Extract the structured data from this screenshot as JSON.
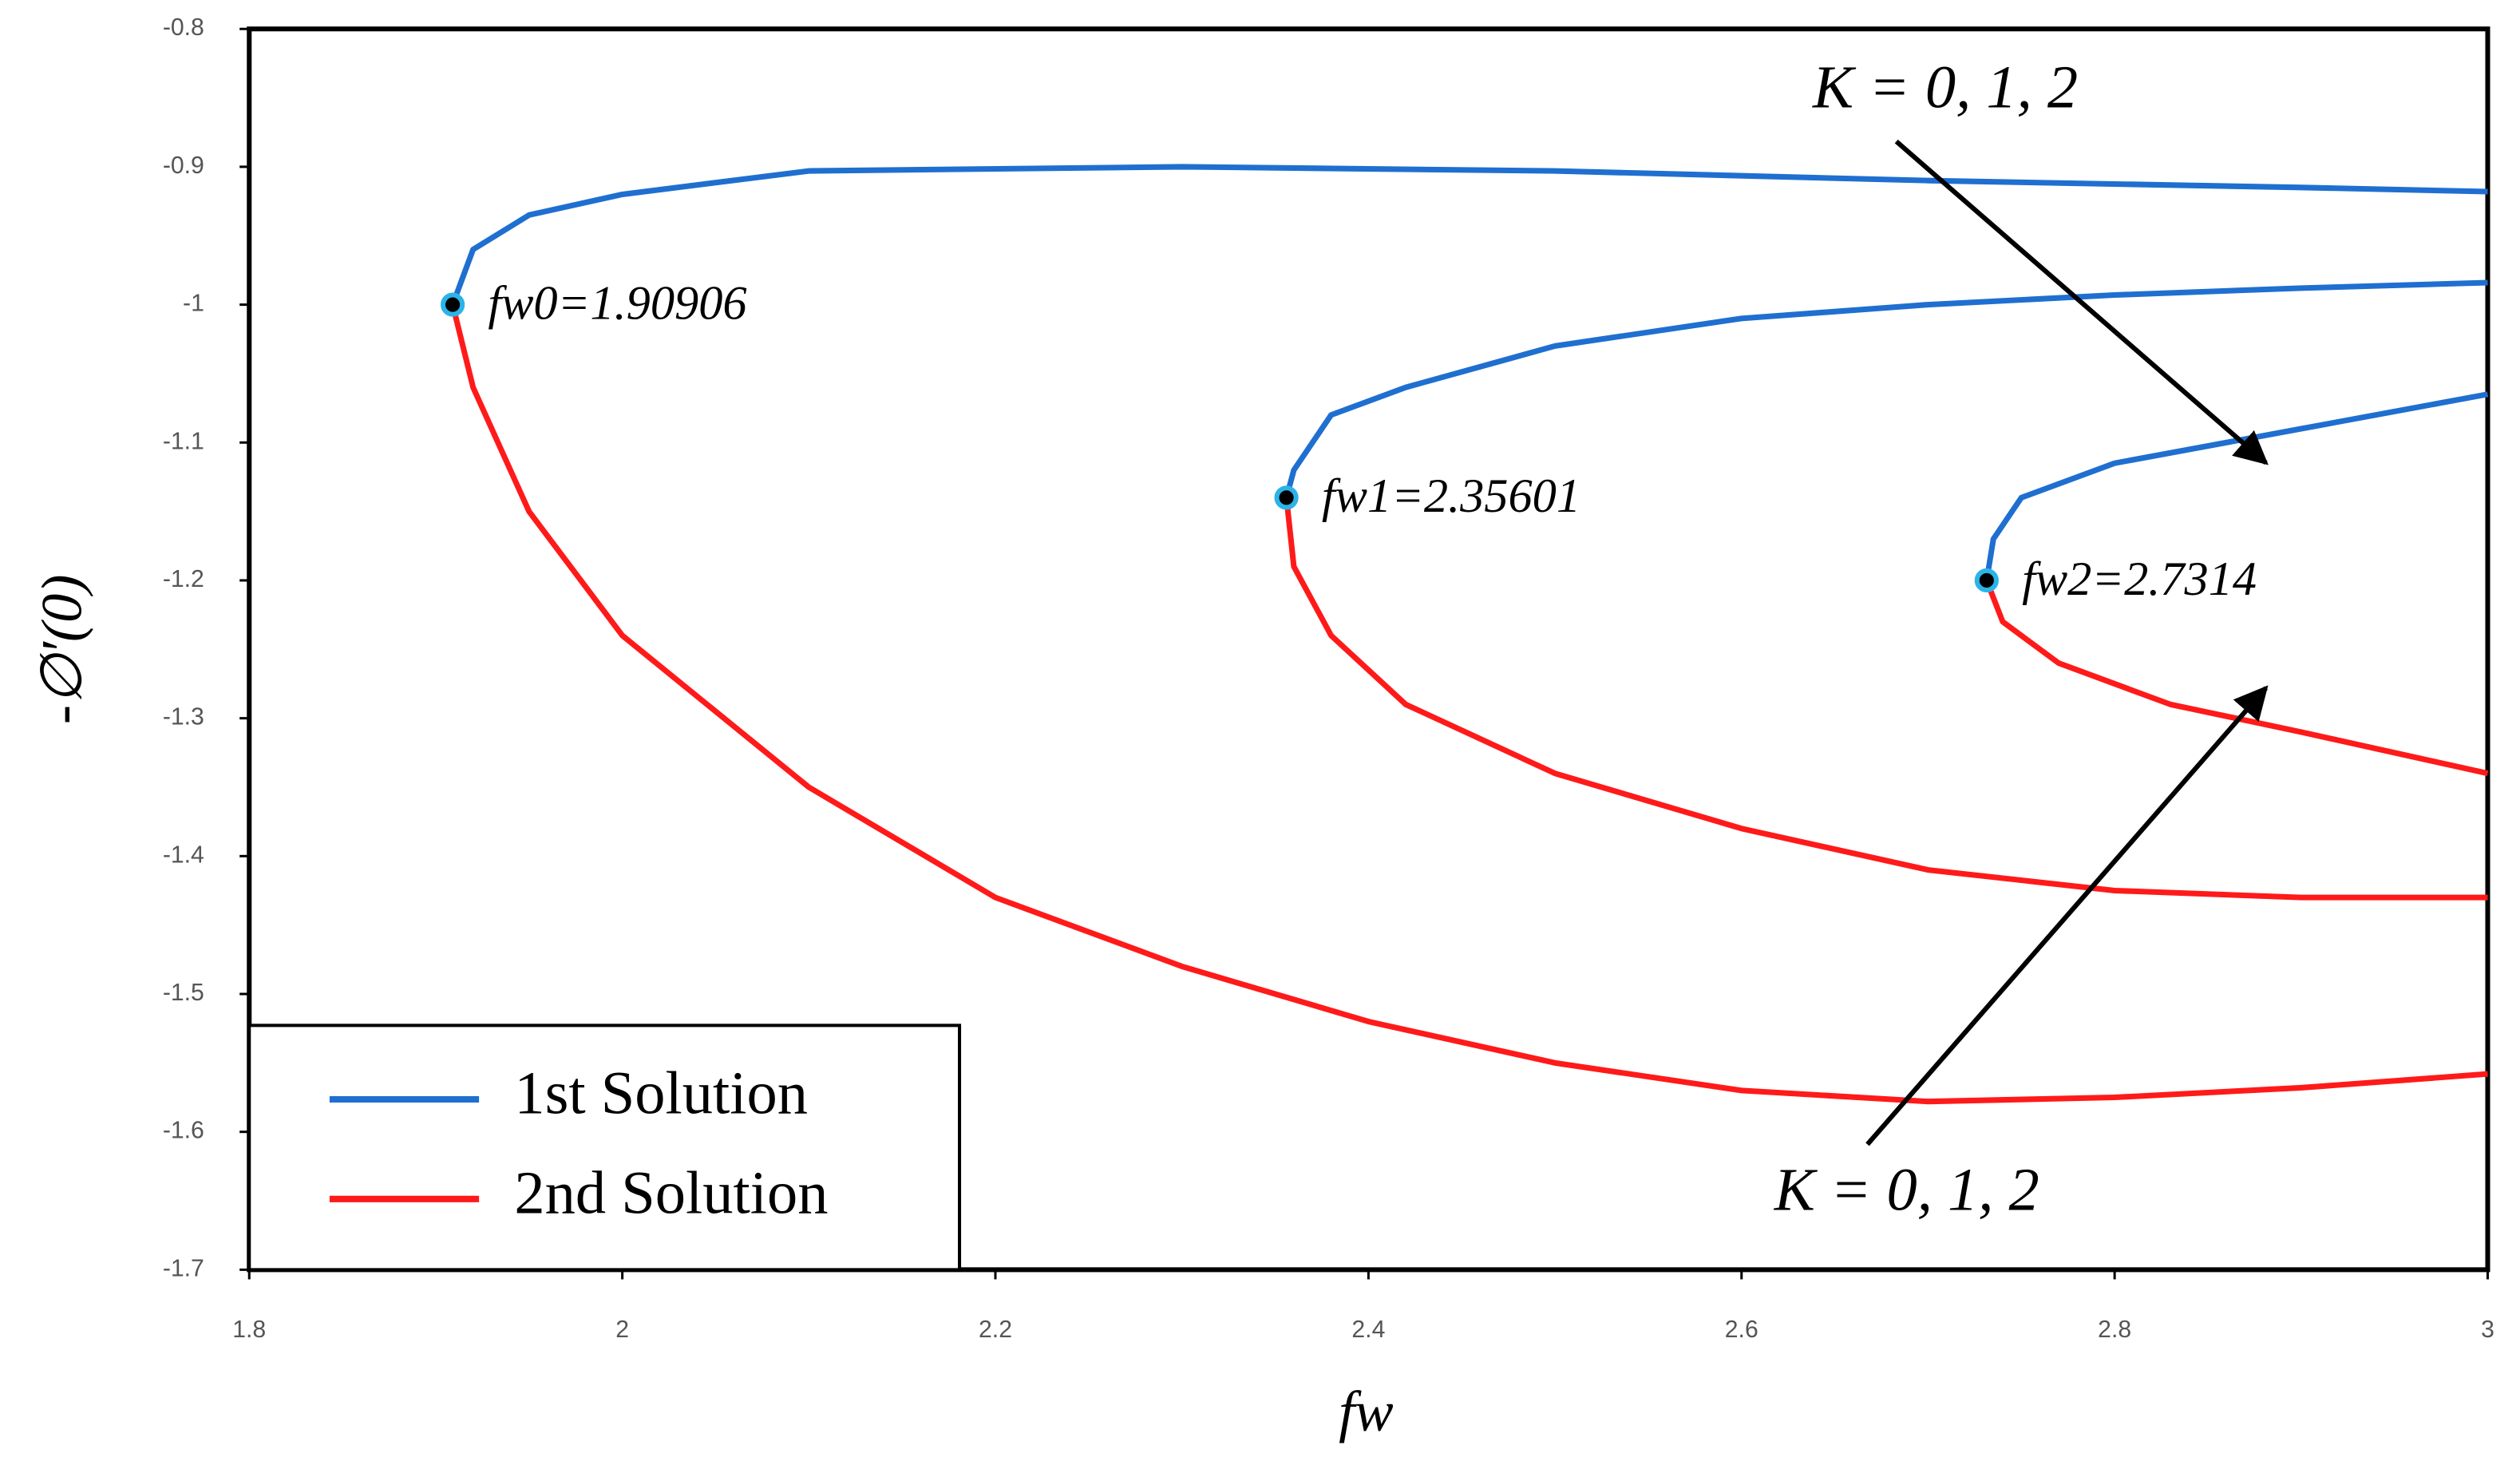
{
  "chart_data": {
    "type": "line",
    "x_label": "fw",
    "y_label": "-∅′(0)",
    "xlim": [
      1.8,
      3
    ],
    "xticks": [
      1.8,
      2,
      2.2,
      2.4,
      2.6,
      2.8,
      3
    ],
    "ylim": [
      -1.7,
      -0.8
    ],
    "yticks": [
      -0.8,
      -0.9,
      -1,
      -1.1,
      -1.2,
      -1.3,
      -1.4,
      -1.5,
      -1.6,
      -1.7
    ],
    "legend": "lower left",
    "series": [
      {
        "name": "1st Solution",
        "color": "#1f6fd0",
        "x": [
          1.90906,
          1.92,
          1.95,
          2.0,
          2.1,
          2.3,
          2.5,
          2.7,
          2.9,
          3.0,
          null,
          2.35601,
          2.36,
          2.38,
          2.42,
          2.5,
          2.6,
          2.7,
          2.8,
          2.9,
          3.0,
          null,
          2.7314,
          2.735,
          2.75,
          2.8,
          2.9,
          3.0
        ],
        "values": [
          -1.0,
          -0.96,
          -0.935,
          -0.92,
          -0.903,
          -0.9,
          -0.903,
          -0.91,
          -0.915,
          -0.918,
          null,
          -1.14,
          -1.12,
          -1.08,
          -1.06,
          -1.03,
          -1.01,
          -1.0,
          -0.993,
          -0.988,
          -0.984,
          null,
          -1.2,
          -1.17,
          -1.14,
          -1.115,
          -1.09,
          -1.065
        ]
      },
      {
        "name": "2nd Solution",
        "color": "#ff1a1a",
        "x": [
          1.90906,
          1.92,
          1.95,
          2.0,
          2.1,
          2.2,
          2.3,
          2.4,
          2.5,
          2.6,
          2.7,
          2.8,
          2.9,
          3.0,
          null,
          2.35601,
          2.36,
          2.38,
          2.42,
          2.5,
          2.6,
          2.7,
          2.8,
          2.9,
          3.0,
          null,
          2.7314,
          2.74,
          2.77,
          2.83,
          2.9,
          3.0
        ],
        "values": [
          -1.0,
          -1.06,
          -1.15,
          -1.24,
          -1.35,
          -1.43,
          -1.48,
          -1.52,
          -1.55,
          -1.57,
          -1.578,
          -1.575,
          -1.568,
          -1.558,
          null,
          -1.14,
          -1.19,
          -1.24,
          -1.29,
          -1.34,
          -1.38,
          -1.41,
          -1.425,
          -1.43,
          -1.43,
          null,
          -1.2,
          -1.23,
          -1.26,
          -1.29,
          -1.31,
          -1.34
        ]
      }
    ],
    "points": [
      {
        "text": "fw0=1.90906",
        "x": 1.90906,
        "y": -1.0
      },
      {
        "text": "fw1=2.35601",
        "x": 2.35601,
        "y": -1.14
      },
      {
        "text": "fw2=2.7314",
        "x": 2.7314,
        "y": -1.2
      }
    ],
    "annotations": [
      "K = 0, 1, 2",
      "K = 0, 1, 2"
    ]
  }
}
